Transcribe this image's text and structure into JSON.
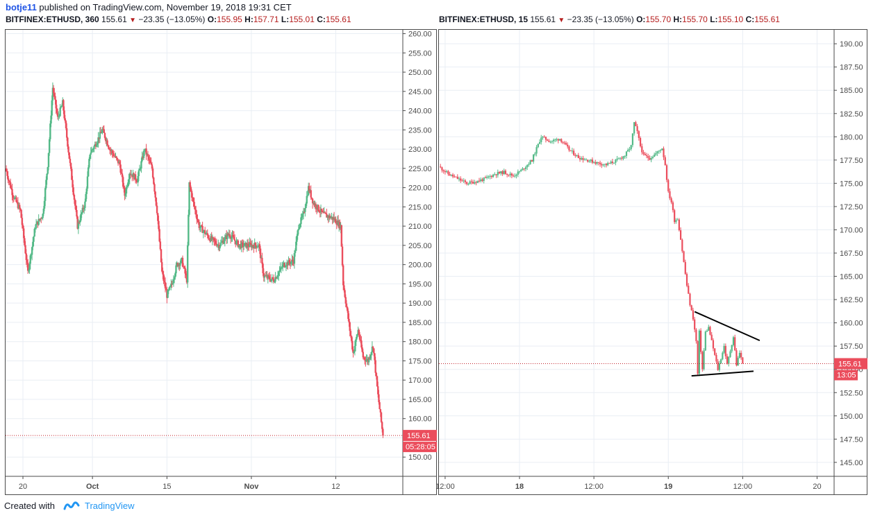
{
  "header": {
    "user": "botje11",
    "text": "published on TradingView.com, November 19, 2018 19:31 CET"
  },
  "charts_info": [
    {
      "symbol": "BITFINEX:ETHUSD, 360",
      "last": "155.61",
      "change": "−23.35 (−13.05%)",
      "O": "155.95",
      "H": "157.71",
      "L": "155.01",
      "C": "155.61",
      "price_label": "155.61",
      "timer_label": "05:28:05"
    },
    {
      "symbol": "BITFINEX:ETHUSD, 15",
      "last": "155.61",
      "change": "−23.35 (−13.05%)",
      "O": "155.70",
      "H": "155.70",
      "L": "155.10",
      "C": "155.61",
      "price_label": "155.61",
      "timer_label": "13:05"
    }
  ],
  "colors": {
    "up": "#53b987",
    "down": "#eb4d5c",
    "grid": "#e9eef4",
    "axis_text": "#4a4a4a",
    "price_line": "#c2202a",
    "brand": "#2196f3"
  },
  "chart_data": [
    {
      "type": "candlestick",
      "title": "BITFINEX:ETHUSD, 360",
      "ylim": [
        145,
        261
      ],
      "y_ticks": [
        "150.00",
        "155.00",
        "160.00",
        "165.00",
        "170.00",
        "175.00",
        "180.00",
        "185.00",
        "190.00",
        "195.00",
        "200.00",
        "205.00",
        "210.00",
        "215.00",
        "220.00",
        "225.00",
        "230.00",
        "235.00",
        "240.00",
        "245.00",
        "250.00",
        "255.00",
        "260.00"
      ],
      "x_ticks": [
        "20",
        "Oct",
        "15",
        "Nov",
        "12"
      ],
      "x_tick_positions": [
        3.5,
        17.5,
        32.5,
        49.5,
        66.5
      ],
      "x_range": [
        0,
        80
      ],
      "last_price": 155.61,
      "close_path": [
        [
          0,
          225
        ],
        [
          1.5,
          218
        ],
        [
          3,
          214
        ],
        [
          4.5,
          198
        ],
        [
          6,
          210
        ],
        [
          7.5,
          213
        ],
        [
          8.5,
          226
        ],
        [
          9.5,
          246
        ],
        [
          10.5,
          238
        ],
        [
          11.5,
          242
        ],
        [
          13,
          226
        ],
        [
          14.5,
          210
        ],
        [
          16,
          216
        ],
        [
          17,
          229
        ],
        [
          18,
          231
        ],
        [
          19.5,
          235
        ],
        [
          21,
          230
        ],
        [
          23,
          226
        ],
        [
          24,
          218
        ],
        [
          25,
          224
        ],
        [
          26.5,
          222
        ],
        [
          28,
          230
        ],
        [
          29.5,
          225
        ],
        [
          30.5,
          214
        ],
        [
          31.5,
          198
        ],
        [
          32.5,
          192
        ],
        [
          33.5,
          195
        ],
        [
          34.5,
          200
        ],
        [
          35.5,
          201
        ],
        [
          36.5,
          196
        ],
        [
          37,
          221
        ],
        [
          38,
          215
        ],
        [
          39,
          210
        ],
        [
          41,
          207
        ],
        [
          43,
          205
        ],
        [
          45,
          208
        ],
        [
          47,
          205
        ],
        [
          49,
          205
        ],
        [
          51,
          205
        ],
        [
          52,
          197
        ],
        [
          54,
          196
        ],
        [
          56,
          200
        ],
        [
          58,
          201
        ],
        [
          59,
          210
        ],
        [
          60,
          213
        ],
        [
          61,
          220
        ],
        [
          62,
          216
        ],
        [
          64,
          213
        ],
        [
          66,
          212
        ],
        [
          67.5,
          210
        ],
        [
          68,
          195
        ],
        [
          69,
          186
        ],
        [
          70,
          177
        ],
        [
          71,
          183
        ],
        [
          72,
          176
        ],
        [
          73,
          175
        ],
        [
          74,
          179
        ],
        [
          75,
          166
        ],
        [
          76,
          155.6
        ]
      ]
    },
    {
      "type": "candlestick",
      "title": "BITFINEX:ETHUSD, 15",
      "ylim": [
        143.5,
        191.5
      ],
      "y_ticks": [
        "145.00",
        "147.50",
        "150.00",
        "152.50",
        "155.00",
        "157.50",
        "160.00",
        "162.50",
        "165.00",
        "167.50",
        "170.00",
        "172.50",
        "175.00",
        "177.50",
        "180.00",
        "182.50",
        "185.00",
        "187.50",
        "190.00"
      ],
      "x_ticks": [
        "12:00",
        "18",
        "12:00",
        "19",
        "12:00",
        "20"
      ],
      "x_tick_positions": [
        48,
        96,
        144,
        192,
        240,
        288
      ],
      "x_range": [
        44,
        299
      ],
      "last_price": 155.61,
      "close_path": [
        [
          44,
          176.8
        ],
        [
          50,
          176
        ],
        [
          56,
          175.5
        ],
        [
          62,
          175
        ],
        [
          68,
          175.2
        ],
        [
          74,
          175.5
        ],
        [
          80,
          176
        ],
        [
          86,
          176.2
        ],
        [
          92,
          175.8
        ],
        [
          98,
          176.5
        ],
        [
          104,
          177.5
        ],
        [
          110,
          180
        ],
        [
          116,
          179.5
        ],
        [
          122,
          179.8
        ],
        [
          128,
          178.6
        ],
        [
          134,
          177.8
        ],
        [
          140,
          177.5
        ],
        [
          146,
          177.2
        ],
        [
          152,
          177
        ],
        [
          158,
          177.4
        ],
        [
          164,
          178
        ],
        [
          168,
          179
        ],
        [
          170,
          181.5
        ],
        [
          172,
          180.5
        ],
        [
          174,
          179
        ],
        [
          176,
          178
        ],
        [
          180,
          177.7
        ],
        [
          184,
          178.2
        ],
        [
          188,
          178.8
        ],
        [
          190,
          177
        ],
        [
          192,
          174
        ],
        [
          194,
          173
        ],
        [
          196,
          171
        ],
        [
          198,
          171.2
        ],
        [
          200,
          169
        ],
        [
          202,
          166.5
        ],
        [
          204,
          164
        ],
        [
          206,
          162
        ],
        [
          208,
          160.5
        ],
        [
          210,
          158
        ],
        [
          211,
          154.5
        ],
        [
          212,
          159
        ],
        [
          214,
          155
        ],
        [
          216,
          159
        ],
        [
          218,
          159.5
        ],
        [
          220,
          158
        ],
        [
          222,
          156.5
        ],
        [
          224,
          155
        ],
        [
          226,
          156.2
        ],
        [
          228,
          157.5
        ],
        [
          230,
          155.5
        ],
        [
          232,
          157
        ],
        [
          234,
          158.5
        ],
        [
          236,
          155.5
        ],
        [
          238,
          156.8
        ],
        [
          240,
          155.61
        ]
      ],
      "trendlines": [
        {
          "name": "upper",
          "points": [
            [
              209,
              161.2
            ],
            [
              251,
              158.1
            ]
          ]
        },
        {
          "name": "lower",
          "points": [
            [
              207,
              154.3
            ],
            [
              247,
              154.8
            ]
          ]
        }
      ]
    }
  ],
  "footer": {
    "created": "Created with",
    "brand": "TradingView"
  }
}
